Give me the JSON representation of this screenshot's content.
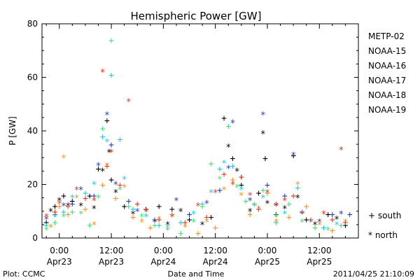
{
  "chart_data": {
    "type": "scatter",
    "title": "Hemispheric Power [GW]",
    "ylabel": "P [GW]",
    "xlabel": "Date and Time",
    "ylim": [
      0,
      80
    ],
    "xlim_hours": [
      -4,
      69
    ],
    "yticks": [
      0,
      20,
      40,
      60,
      80
    ],
    "xticks": [
      {
        "x": 0,
        "time": "0:00",
        "date": "Apr23"
      },
      {
        "x": 12,
        "time": "12:00",
        "date": "Apr23"
      },
      {
        "x": 24,
        "time": "0:00",
        "date": "Apr24"
      },
      {
        "x": 36,
        "time": "12:00",
        "date": "Apr24"
      },
      {
        "x": 48,
        "time": "0:00",
        "date": "Apr25"
      },
      {
        "x": 60,
        "time": "12:00",
        "date": "Apr25"
      }
    ],
    "marker_legend": [
      {
        "symbol": "+",
        "label": "south"
      },
      {
        "symbol": "*",
        "label": "north"
      }
    ],
    "series": [
      {
        "name": "METP-02",
        "color": "#000000",
        "points": [
          [
            -3,
            6,
            "+"
          ],
          [
            -2,
            10,
            "*"
          ],
          [
            -1,
            12,
            "+"
          ],
          [
            0,
            14,
            "*"
          ],
          [
            1,
            16,
            "+"
          ],
          [
            2,
            12,
            "*"
          ],
          [
            3,
            14,
            "+"
          ],
          [
            5,
            12,
            "*"
          ],
          [
            7,
            16,
            "+"
          ],
          [
            8,
            11,
            "*"
          ],
          [
            9,
            26,
            "+"
          ],
          [
            10,
            25,
            "*"
          ],
          [
            11,
            44,
            "+"
          ],
          [
            11.5,
            32,
            "*"
          ],
          [
            12,
            22,
            "+"
          ],
          [
            13,
            17,
            "*"
          ],
          [
            15,
            12,
            "+"
          ],
          [
            17,
            9,
            "*"
          ],
          [
            20,
            11,
            "+"
          ],
          [
            22,
            6,
            "*"
          ],
          [
            23,
            12,
            "+"
          ],
          [
            25,
            5,
            "*"
          ],
          [
            26,
            11,
            "+"
          ],
          [
            28,
            10,
            "*"
          ],
          [
            30,
            7,
            "+"
          ],
          [
            33,
            5,
            "*"
          ],
          [
            35,
            8,
            "+"
          ],
          [
            38,
            45,
            "+"
          ],
          [
            39,
            34,
            "*"
          ],
          [
            40,
            30,
            "+"
          ],
          [
            41,
            25,
            "*"
          ],
          [
            42,
            20,
            "+"
          ],
          [
            44,
            10,
            "*"
          ],
          [
            46,
            17,
            "+"
          ],
          [
            47,
            39,
            "*"
          ],
          [
            47.5,
            30,
            "+"
          ],
          [
            48,
            13,
            "*"
          ],
          [
            50,
            9,
            "+"
          ],
          [
            52,
            11,
            "*"
          ],
          [
            54,
            31,
            "+"
          ],
          [
            55,
            15,
            "*"
          ],
          [
            57,
            7,
            "+"
          ],
          [
            59,
            5,
            "*"
          ],
          [
            62,
            9,
            "+"
          ],
          [
            64,
            7,
            "*"
          ],
          [
            66,
            5,
            "+"
          ]
        ]
      },
      {
        "name": "NOAA-15",
        "color": "#1c3cc8",
        "points": [
          [
            -3,
            7,
            "*"
          ],
          [
            -1,
            9,
            "+"
          ],
          [
            1,
            12,
            "*"
          ],
          [
            3,
            13,
            "+"
          ],
          [
            5,
            18,
            "*"
          ],
          [
            8,
            16,
            "+"
          ],
          [
            9,
            27,
            "*"
          ],
          [
            11,
            46,
            "*"
          ],
          [
            12,
            35,
            "+"
          ],
          [
            13,
            20,
            "*"
          ],
          [
            16,
            14,
            "+"
          ],
          [
            18,
            10,
            "*"
          ],
          [
            22,
            7,
            "+"
          ],
          [
            27,
            14,
            "*"
          ],
          [
            30,
            9,
            "+"
          ],
          [
            34,
            13,
            "*"
          ],
          [
            37,
            18,
            "+"
          ],
          [
            39,
            26,
            "*"
          ],
          [
            40,
            43,
            "*"
          ],
          [
            42,
            23,
            "+"
          ],
          [
            44,
            14,
            "*"
          ],
          [
            47,
            46,
            "*"
          ],
          [
            48,
            20,
            "+"
          ],
          [
            50,
            12,
            "*"
          ],
          [
            52,
            16,
            "+"
          ],
          [
            54,
            31,
            "*"
          ],
          [
            56,
            10,
            "+"
          ],
          [
            60,
            6,
            "*"
          ],
          [
            63,
            9,
            "+"
          ],
          [
            65,
            9,
            "*"
          ],
          [
            67,
            9,
            "+"
          ]
        ]
      },
      {
        "name": "NOAA-16",
        "color": "#22c6e0",
        "points": [
          [
            -3,
            5,
            "+"
          ],
          [
            -1,
            8,
            "*"
          ],
          [
            1,
            10,
            "+"
          ],
          [
            3,
            15,
            "*"
          ],
          [
            6,
            17,
            "+"
          ],
          [
            8,
            20,
            "*"
          ],
          [
            10,
            38,
            "+"
          ],
          [
            11,
            36,
            "*"
          ],
          [
            12,
            61,
            "+"
          ],
          [
            14,
            37,
            "+"
          ],
          [
            15,
            22,
            "*"
          ],
          [
            17,
            11,
            "+"
          ],
          [
            20,
            8,
            "*"
          ],
          [
            23,
            5,
            "+"
          ],
          [
            25,
            3,
            "*"
          ],
          [
            28,
            6,
            "+"
          ],
          [
            31,
            9,
            "*"
          ],
          [
            33,
            13,
            "+"
          ],
          [
            35,
            17,
            "*"
          ],
          [
            37,
            26,
            "+"
          ],
          [
            38,
            28,
            "*"
          ],
          [
            40,
            27,
            "+"
          ],
          [
            42,
            18,
            "*"
          ],
          [
            45,
            13,
            "+"
          ],
          [
            47,
            15,
            "*"
          ],
          [
            50,
            6,
            "+"
          ],
          [
            52,
            9,
            "*"
          ],
          [
            55,
            19,
            "+"
          ],
          [
            58,
            6,
            "*"
          ],
          [
            61,
            4,
            "+"
          ],
          [
            64,
            5,
            "*"
          ]
        ]
      },
      {
        "name": "NOAA-17",
        "color": "#3de07a",
        "points": [
          [
            -3,
            3,
            "*"
          ],
          [
            -1,
            6,
            "+"
          ],
          [
            1,
            8,
            "*"
          ],
          [
            3,
            10,
            "+"
          ],
          [
            5,
            9,
            "*"
          ],
          [
            7,
            5,
            "+"
          ],
          [
            9,
            15,
            "*"
          ],
          [
            10,
            41,
            "+"
          ],
          [
            12,
            74,
            "+"
          ],
          [
            14,
            18,
            "*"
          ],
          [
            16,
            12,
            "+"
          ],
          [
            19,
            8,
            "*"
          ],
          [
            22,
            5,
            "+"
          ],
          [
            25,
            4,
            "*"
          ],
          [
            28,
            2,
            "+"
          ],
          [
            31,
            6,
            "*"
          ],
          [
            33,
            12,
            "+"
          ],
          [
            35,
            28,
            "+"
          ],
          [
            37,
            22,
            "*"
          ],
          [
            39,
            42,
            "+"
          ],
          [
            41,
            19,
            "*"
          ],
          [
            43,
            14,
            "+"
          ],
          [
            45,
            12,
            "*"
          ],
          [
            47,
            18,
            "+"
          ],
          [
            50,
            8,
            "*"
          ],
          [
            53,
            13,
            "+"
          ],
          [
            56,
            6,
            "*"
          ],
          [
            59,
            4,
            "+"
          ],
          [
            62,
            3,
            "*"
          ],
          [
            65,
            5,
            "+"
          ]
        ]
      },
      {
        "name": "NOAA-18",
        "color": "#f4921e",
        "points": [
          [
            -2,
            4,
            "*"
          ],
          [
            0,
            12,
            "+"
          ],
          [
            1,
            30,
            "*"
          ],
          [
            2,
            9,
            "+"
          ],
          [
            4,
            15,
            "*"
          ],
          [
            6,
            11,
            "+"
          ],
          [
            8,
            5,
            "*"
          ],
          [
            10,
            20,
            "+"
          ],
          [
            11,
            27,
            "*"
          ],
          [
            13,
            15,
            "+"
          ],
          [
            15,
            19,
            "*"
          ],
          [
            17,
            8,
            "+"
          ],
          [
            19,
            6,
            "*"
          ],
          [
            21,
            4,
            "+"
          ],
          [
            23,
            7,
            "*"
          ],
          [
            26,
            9,
            "+"
          ],
          [
            29,
            4,
            "*"
          ],
          [
            32,
            2,
            "+"
          ],
          [
            34,
            6,
            "*"
          ],
          [
            36,
            4,
            "+"
          ],
          [
            38,
            18,
            "*"
          ],
          [
            40,
            22,
            "+"
          ],
          [
            42,
            16,
            "*"
          ],
          [
            44,
            9,
            "+"
          ],
          [
            46,
            11,
            "*"
          ],
          [
            48,
            17,
            "+"
          ],
          [
            50,
            6,
            "*"
          ],
          [
            53,
            8,
            "+"
          ],
          [
            55,
            20,
            "*"
          ],
          [
            57,
            12,
            "+"
          ],
          [
            60,
            5,
            "*"
          ],
          [
            63,
            3,
            "+"
          ],
          [
            66,
            6,
            "*"
          ]
        ]
      },
      {
        "name": "NOAA-19",
        "color": "#e5381c",
        "points": [
          [
            -3,
            8,
            "*"
          ],
          [
            -1,
            10,
            "+"
          ],
          [
            0,
            13,
            "*"
          ],
          [
            2,
            12,
            "+"
          ],
          [
            4,
            18,
            "*"
          ],
          [
            6,
            15,
            "+"
          ],
          [
            8,
            14,
            "*"
          ],
          [
            10,
            62,
            "*"
          ],
          [
            11,
            27,
            "+"
          ],
          [
            12,
            32,
            "*"
          ],
          [
            14,
            20,
            "+"
          ],
          [
            16,
            51,
            "*"
          ],
          [
            18,
            13,
            "+"
          ],
          [
            20,
            10,
            "*"
          ],
          [
            23,
            7,
            "+"
          ],
          [
            26,
            8,
            "*"
          ],
          [
            29,
            6,
            "+"
          ],
          [
            32,
            12,
            "*"
          ],
          [
            34,
            8,
            "+"
          ],
          [
            36,
            17,
            "*"
          ],
          [
            38,
            24,
            "+"
          ],
          [
            40,
            20,
            "*"
          ],
          [
            42,
            23,
            "+"
          ],
          [
            44,
            16,
            "*"
          ],
          [
            46,
            11,
            "+"
          ],
          [
            48,
            17,
            "*"
          ],
          [
            50,
            13,
            "+"
          ],
          [
            52,
            14,
            "*"
          ],
          [
            54,
            16,
            "+"
          ],
          [
            56,
            9,
            "*"
          ],
          [
            58,
            7,
            "+"
          ],
          [
            61,
            9,
            "*"
          ],
          [
            63,
            7,
            "+"
          ],
          [
            65,
            33,
            "*"
          ],
          [
            66,
            6,
            "+"
          ]
        ]
      }
    ]
  },
  "footer": {
    "plot_credit": "Plot: CCMC",
    "timestamp": "2011/04/25 21:10:09"
  }
}
